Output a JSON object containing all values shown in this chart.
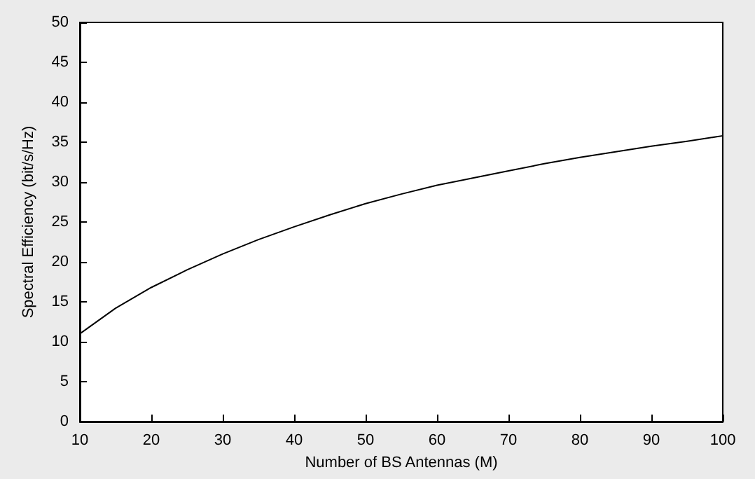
{
  "chart_data": {
    "type": "line",
    "xlabel": "Number of BS Antennas (M)",
    "ylabel": "Spectral Efficiency (bit/s/Hz)",
    "x": [
      10,
      15,
      20,
      25,
      30,
      35,
      40,
      45,
      50,
      55,
      60,
      65,
      70,
      75,
      80,
      85,
      90,
      95,
      100
    ],
    "series": [
      {
        "color": "#000000",
        "values": [
          11,
          14.2,
          16.8,
          19,
          21,
          22.8,
          24.4,
          25.9,
          27.3,
          28.5,
          29.6,
          30.5,
          31.4,
          32.3,
          33.1,
          33.8,
          34.5,
          35.1,
          35.8
        ]
      }
    ],
    "xlim": [
      10,
      100
    ],
    "xticks": [
      10,
      20,
      30,
      40,
      50,
      60,
      70,
      80,
      90,
      100
    ],
    "ylim": [
      0,
      50
    ],
    "yticks": [
      0,
      5,
      10,
      15,
      20,
      25,
      30,
      35,
      40,
      45,
      50
    ],
    "grid": false,
    "marker": "none",
    "line_style": "solid"
  }
}
